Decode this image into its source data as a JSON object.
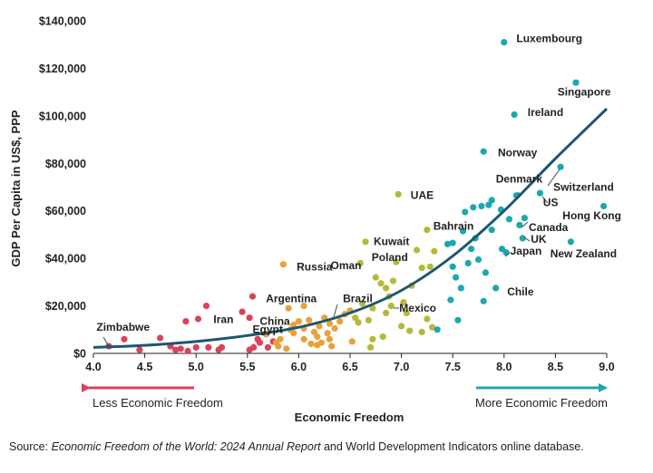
{
  "colors": {
    "low": "#d9435a",
    "mid_low": "#e8a13a",
    "mid_high": "#b6b83a",
    "high": "#1ba8ad",
    "trend": "#1d5770",
    "arrow_left": "#d9435a",
    "arrow_right": "#1ba8ad"
  },
  "arrows": {
    "left_label": "Less Economic Freedom",
    "right_label": "More Economic Freedom"
  },
  "source": {
    "prefix": "Source: ",
    "italic": "Economic Freedom of the World: 2024 Annual Report",
    "suffix": " and World Development Indicators online database."
  },
  "chart_data": {
    "type": "scatter",
    "title": "",
    "xlabel": "Economic Freedom",
    "ylabel": "GDP Per Capita in US$, PPP",
    "xlim": [
      4.0,
      9.0
    ],
    "ylim": [
      0,
      140000
    ],
    "xticks": [
      4.0,
      4.5,
      5.0,
      5.5,
      6.0,
      6.5,
      7.0,
      7.5,
      8.0,
      8.5,
      9.0
    ],
    "xtick_labels": [
      "4.0",
      "4.5",
      "5.0",
      "5.5",
      "6.0",
      "6.5",
      "7.0",
      "7.5",
      "8.0",
      "8.5",
      "9.0"
    ],
    "yticks": [
      0,
      20000,
      40000,
      60000,
      80000,
      100000,
      120000,
      140000
    ],
    "ytick_labels": [
      "$0",
      "$20,000",
      "$40,000",
      "$60,000",
      "$80,000",
      "$100,000",
      "$120,000",
      "$140,000"
    ],
    "grid": false,
    "trend_line": {
      "type": "exponential",
      "points": [
        [
          4.0,
          2500
        ],
        [
          4.5,
          3400
        ],
        [
          5.0,
          5000
        ],
        [
          5.5,
          7500
        ],
        [
          6.0,
          11000
        ],
        [
          6.5,
          17000
        ],
        [
          7.0,
          26500
        ],
        [
          7.5,
          41000
        ],
        [
          8.0,
          60000
        ],
        [
          8.5,
          82000
        ],
        [
          9.0,
          103000
        ]
      ]
    },
    "labels": [
      {
        "text": "Luxembourg",
        "x": 8.12,
        "y": 131000
      },
      {
        "text": "Singapore",
        "x": 8.52,
        "y": 108500
      },
      {
        "text": "Ireland",
        "x": 8.23,
        "y": 100000
      },
      {
        "text": "Norway",
        "x": 7.94,
        "y": 83000
      },
      {
        "text": "Denmark",
        "x": 7.92,
        "y": 72000
      },
      {
        "text": "Switzerland",
        "x": 8.48,
        "y": 68500
      },
      {
        "text": "US",
        "x": 8.38,
        "y": 62000
      },
      {
        "text": "Hong Kong",
        "x": 8.57,
        "y": 56500
      },
      {
        "text": "Canada",
        "x": 8.24,
        "y": 51500
      },
      {
        "text": "UK",
        "x": 8.26,
        "y": 46500
      },
      {
        "text": "Japan",
        "x": 8.06,
        "y": 41500
      },
      {
        "text": "New Zealand",
        "x": 8.45,
        "y": 40500
      },
      {
        "text": "Chile",
        "x": 8.03,
        "y": 24500
      },
      {
        "text": "UAE",
        "x": 7.09,
        "y": 65000
      },
      {
        "text": "Bahrain",
        "x": 7.31,
        "y": 52000
      },
      {
        "text": "Kuwait",
        "x": 6.73,
        "y": 45500
      },
      {
        "text": "Poland",
        "x": 6.71,
        "y": 39000
      },
      {
        "text": "Oman",
        "x": 6.31,
        "y": 35500
      },
      {
        "text": "Russia",
        "x": 5.98,
        "y": 35000
      },
      {
        "text": "Mexico",
        "x": 6.98,
        "y": 17500
      },
      {
        "text": "Brazil",
        "x": 6.43,
        "y": 21500
      },
      {
        "text": "Argentina",
        "x": 5.68,
        "y": 21500
      },
      {
        "text": "China",
        "x": 5.62,
        "y": 12000
      },
      {
        "text": "Egypt",
        "x": 5.55,
        "y": 8500
      },
      {
        "text": "Iran",
        "x": 5.17,
        "y": 12800
      },
      {
        "text": "Zimbabwe",
        "x": 4.03,
        "y": 9500
      }
    ],
    "series": [
      {
        "color_key": "low",
        "points": [
          [
            4.15,
            3000
          ],
          [
            4.3,
            6000
          ],
          [
            4.45,
            1500
          ],
          [
            4.65,
            6500
          ],
          [
            4.75,
            3000
          ],
          [
            4.8,
            1500
          ],
          [
            4.9,
            13500
          ],
          [
            4.92,
            1000
          ],
          [
            5.0,
            2500
          ],
          [
            5.02,
            14500
          ],
          [
            5.1,
            20000
          ],
          [
            5.12,
            2500
          ],
          [
            5.22,
            1500
          ],
          [
            5.25,
            2500
          ],
          [
            5.45,
            17500
          ],
          [
            5.52,
            15000
          ],
          [
            5.55,
            24000
          ],
          [
            5.6,
            6000
          ],
          [
            5.52,
            1500
          ],
          [
            5.56,
            2500
          ],
          [
            5.62,
            4500
          ],
          [
            5.7,
            2500
          ],
          [
            5.75,
            5000
          ],
          [
            4.85,
            2000
          ]
        ]
      },
      {
        "color_key": "mid_low",
        "points": [
          [
            5.68,
            8000
          ],
          [
            5.78,
            4500
          ],
          [
            5.82,
            6000
          ],
          [
            5.85,
            37500
          ],
          [
            5.88,
            2000
          ],
          [
            5.9,
            19000
          ],
          [
            5.92,
            10000
          ],
          [
            5.95,
            12000
          ],
          [
            6.0,
            13500
          ],
          [
            6.05,
            20000
          ],
          [
            6.05,
            10500
          ],
          [
            6.1,
            14000
          ],
          [
            6.12,
            4000
          ],
          [
            6.15,
            9000
          ],
          [
            6.18,
            7000
          ],
          [
            6.2,
            11500
          ],
          [
            6.22,
            4500
          ],
          [
            6.25,
            15000
          ],
          [
            6.28,
            8500
          ],
          [
            6.3,
            6000
          ],
          [
            6.32,
            3000
          ],
          [
            6.35,
            10500
          ],
          [
            6.4,
            13500
          ],
          [
            6.45,
            16500
          ],
          [
            6.5,
            18000
          ],
          [
            6.52,
            5000
          ],
          [
            5.8,
            3000
          ],
          [
            5.95,
            8500
          ],
          [
            6.18,
            3500
          ],
          [
            6.3,
            12500
          ],
          [
            6.05,
            6000
          ]
        ]
      },
      {
        "color_key": "mid_high",
        "points": [
          [
            6.55,
            15000
          ],
          [
            6.58,
            13000
          ],
          [
            6.6,
            38000
          ],
          [
            6.62,
            21000
          ],
          [
            6.65,
            47000
          ],
          [
            6.68,
            14000
          ],
          [
            6.7,
            2500
          ],
          [
            6.72,
            19000
          ],
          [
            6.75,
            32000
          ],
          [
            6.8,
            29500
          ],
          [
            6.82,
            7000
          ],
          [
            6.85,
            27500
          ],
          [
            6.88,
            24000
          ],
          [
            6.9,
            20000
          ],
          [
            6.92,
            30500
          ],
          [
            6.95,
            38500
          ],
          [
            6.97,
            67000
          ],
          [
            7.0,
            11500
          ],
          [
            7.02,
            21500
          ],
          [
            7.05,
            17000
          ],
          [
            7.1,
            28500
          ],
          [
            7.15,
            43500
          ],
          [
            7.2,
            36000
          ],
          [
            7.25,
            14500
          ],
          [
            7.28,
            36500
          ],
          [
            7.3,
            11000
          ],
          [
            7.32,
            43000
          ],
          [
            7.2,
            9000
          ],
          [
            6.85,
            17000
          ],
          [
            7.08,
            9500
          ],
          [
            7.25,
            52000
          ],
          [
            6.72,
            6000
          ]
        ]
      },
      {
        "color_key": "high",
        "points": [
          [
            7.35,
            10000
          ],
          [
            7.45,
            46000
          ],
          [
            7.48,
            22500
          ],
          [
            7.5,
            46500
          ],
          [
            7.5,
            36500
          ],
          [
            7.53,
            32000
          ],
          [
            7.55,
            14000
          ],
          [
            7.58,
            27500
          ],
          [
            7.6,
            51500
          ],
          [
            7.62,
            59500
          ],
          [
            7.65,
            38000
          ],
          [
            7.68,
            44000
          ],
          [
            7.7,
            61500
          ],
          [
            7.72,
            48500
          ],
          [
            7.75,
            39500
          ],
          [
            7.78,
            62000
          ],
          [
            7.8,
            22000
          ],
          [
            7.8,
            85000
          ],
          [
            7.82,
            34000
          ],
          [
            7.85,
            62500
          ],
          [
            7.88,
            64500
          ],
          [
            7.92,
            27500
          ],
          [
            7.97,
            60500
          ],
          [
            7.98,
            44000
          ],
          [
            8.0,
            131000
          ],
          [
            8.02,
            42500
          ],
          [
            8.05,
            56500
          ],
          [
            8.1,
            100500
          ],
          [
            8.12,
            66500
          ],
          [
            8.15,
            54000
          ],
          [
            8.18,
            48500
          ],
          [
            8.2,
            57000
          ],
          [
            8.35,
            67500
          ],
          [
            8.55,
            78500
          ],
          [
            8.65,
            47000
          ],
          [
            8.7,
            114000
          ],
          [
            8.97,
            62000
          ],
          [
            7.88,
            52000
          ]
        ]
      }
    ]
  }
}
